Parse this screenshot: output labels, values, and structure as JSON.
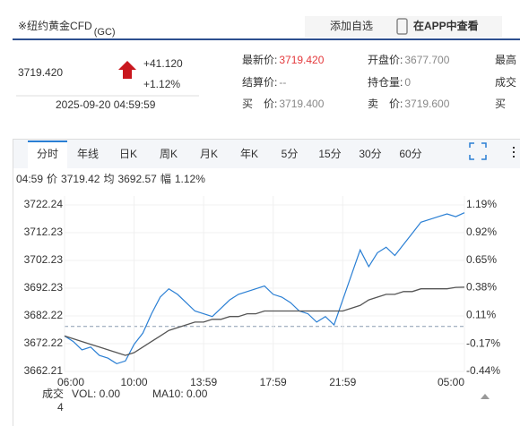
{
  "header": {
    "title": "※纽约黄金CFD",
    "code": "(GC)",
    "buttons": [
      "添加自选",
      "在APP中查看"
    ]
  },
  "quote": {
    "price": "3719.420",
    "change": "+41.120",
    "change_pct": "+1.12%",
    "time": "2025-09-20 04:59:59",
    "fields": [
      [
        {
          "label": "最新价:",
          "value": "3719.420"
        },
        {
          "label": "开盘价:",
          "value": "3677.700"
        },
        {
          "label": "最高"
        }
      ],
      [
        {
          "label": "结算价:",
          "value": "--"
        },
        {
          "label": "持仓量:",
          "value": "0"
        },
        {
          "label": "成交"
        }
      ],
      [
        {
          "label": "买　价:",
          "value": "3719.400"
        },
        {
          "label": "卖　价:",
          "value": "3719.600"
        },
        {
          "label": "买"
        }
      ]
    ]
  },
  "tabs": [
    "分时",
    "年线",
    "日K",
    "周K",
    "月K",
    "年K",
    "5分",
    "15分",
    "30分",
    "60分"
  ],
  "info": {
    "time": "04:59",
    "price_label": "价",
    "price": "3719.42",
    "avg_label": "均",
    "avg": "3692.57",
    "amp_label": "幅",
    "amp": "1.12%"
  },
  "chart_data": {
    "type": "line",
    "categories": [
      "06:00",
      null,
      null,
      null,
      null,
      null,
      null,
      null,
      "10:00",
      null,
      null,
      null,
      null,
      null,
      null,
      null,
      "13:59",
      null,
      null,
      null,
      null,
      null,
      null,
      null,
      "17:59",
      null,
      null,
      null,
      null,
      null,
      null,
      null,
      "21:59",
      null,
      null,
      null,
      null,
      null,
      null,
      null,
      null,
      null,
      null,
      null,
      null,
      null,
      "05:00"
    ],
    "series": [
      {
        "name": "价",
        "color": "#2a7fd4",
        "values": [
          3675,
          3673,
          3670,
          3671,
          3668,
          3667,
          3665,
          3666,
          3672,
          3676,
          3683,
          3689,
          3692,
          3690,
          3687,
          3684,
          3683,
          3682,
          3685,
          3688,
          3690,
          3691,
          3692,
          3693,
          3690,
          3689,
          3687,
          3684,
          3683,
          3680,
          3682,
          3679,
          3688,
          3697,
          3706,
          3700,
          3705,
          3707,
          3704,
          3708,
          3712,
          3716,
          3717,
          3718,
          3719,
          3718,
          3719.42
        ]
      },
      {
        "name": "均",
        "color": "#555555",
        "values": [
          3675,
          3674,
          3673,
          3672,
          3671,
          3670,
          3669,
          3668,
          3669,
          3671,
          3673,
          3675,
          3677,
          3678,
          3679,
          3680,
          3680,
          3681,
          3681,
          3682,
          3682,
          3683,
          3683,
          3684,
          3684,
          3684,
          3684,
          3684,
          3684,
          3684,
          3684,
          3684,
          3684,
          3685,
          3686,
          3688,
          3689,
          3690,
          3690,
          3691,
          3691,
          3692,
          3692,
          3692,
          3692,
          3692.5,
          3692.57
        ]
      }
    ],
    "ylim": [
      3662.21,
      3722.24
    ],
    "yticks": [
      3722.24,
      3712.23,
      3702.23,
      3692.23,
      3682.22,
      3672.22,
      3662.21
    ],
    "y2lim": [
      -0.44,
      1.19
    ],
    "y2ticks": [
      {
        "value": 1.19,
        "label": "1.19%"
      },
      {
        "value": 0.92,
        "label": "0.92%"
      },
      {
        "value": 0.65,
        "label": "0.65%"
      },
      {
        "value": 0.38,
        "label": "0.38%"
      },
      {
        "value": 0.11,
        "label": "0.11%"
      },
      {
        "value": -0.17,
        "label": "-0.17%"
      },
      {
        "value": -0.44,
        "label": "-0.44%"
      }
    ],
    "up_color": "#e4393c",
    "down_color": "#1a9a3c"
  },
  "volume": {
    "label": "成交",
    "value": "4",
    "vol": "VOL: 0.00",
    "ma": "MA10: 0.00"
  }
}
